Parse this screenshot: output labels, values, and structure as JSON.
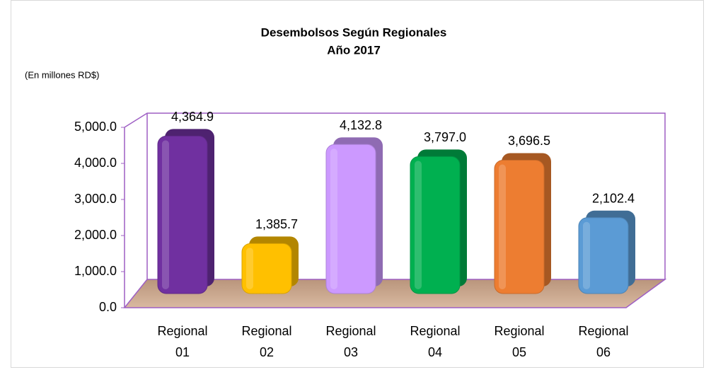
{
  "chart_data": {
    "type": "bar3d",
    "title": "Desembolsos Según Regionales",
    "subtitle": "Año 2017",
    "y_label": "(En millones RD$)",
    "categories": [
      "Regional 01",
      "Regional 02",
      "Regional 03",
      "Regional 04",
      "Regional 05",
      "Regional 06"
    ],
    "values": [
      4364.9,
      1385.7,
      4132.8,
      3797.0,
      3696.5,
      2102.4
    ],
    "value_labels": [
      "4,364.9",
      "1,385.7",
      "4,132.8",
      "3,797.0",
      "3,696.5",
      "2,102.4"
    ],
    "colors": [
      "#7030a0",
      "#ffc000",
      "#cc99ff",
      "#00b050",
      "#ed7d31",
      "#5b9bd5"
    ],
    "ylim": [
      0,
      5000
    ],
    "yticks": [
      {
        "value": 0,
        "label": "0.0"
      },
      {
        "value": 1000,
        "label": "1,000.0"
      },
      {
        "value": 2000,
        "label": "2,000.0"
      },
      {
        "value": 3000,
        "label": "3,000.0"
      },
      {
        "value": 4000,
        "label": "4,000.0"
      },
      {
        "value": 5000,
        "label": "5,000.0"
      }
    ],
    "grid": false
  }
}
